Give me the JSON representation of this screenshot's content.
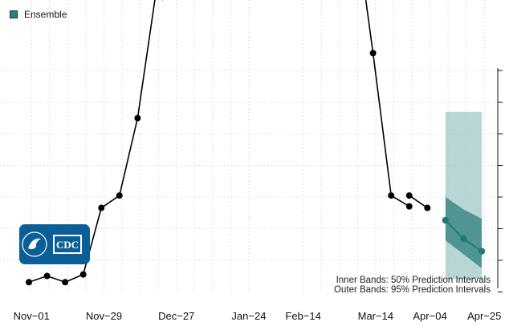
{
  "legend": {
    "label": "Ensemble",
    "color": "#2d7f7c"
  },
  "notes": {
    "inner": "Inner Bands: 50% Prediction Intervals",
    "outer": "Outer Bands: 95% Prediction Intervals"
  },
  "logo": {
    "text": "CDC"
  },
  "colors": {
    "observed": "#000000",
    "forecast": "#1f7b78",
    "band50": "#2d7f7c",
    "band95": "#9fc8c7",
    "grid": "#cccccc"
  },
  "chart_data": {
    "type": "line",
    "title": "",
    "xlabel": "",
    "ylabel": "",
    "x_ticks": [
      {
        "label": "Nov−01",
        "date": "2020-11-01"
      },
      {
        "label": "Nov−29",
        "date": "2020-11-29"
      },
      {
        "label": "Dec−27",
        "date": "2020-12-27"
      },
      {
        "label": "Jan−24",
        "date": "2021-01-24"
      },
      {
        "label": "Feb−14",
        "date": "2021-02-14"
      },
      {
        "label": "Mar−14",
        "date": "2021-03-14"
      },
      {
        "label": "Apr−04",
        "date": "2021-04-04"
      },
      {
        "label": "Apr−25",
        "date": "2021-04-25"
      }
    ],
    "y_ticks_count": 7,
    "grid": true,
    "series": [
      {
        "x": [
          "2020-10-31",
          "2020-11-07",
          "2020-11-14",
          "2020-11-21",
          "2020-11-28",
          "2020-12-05",
          "2020-12-12",
          "2020-12-19",
          "2021-03-13",
          "2021-03-20",
          "2021-03-27",
          "2021-04-03"
        ],
        "y": [
          0.2,
          0.4,
          0.2,
          0.45,
          2.6,
          3.0,
          5.5,
          9.5,
          7.6,
          3.0,
          2.65,
          null
        ]
      },
      {
        "x": [
          "2021-03-27",
          "2021-04-03"
        ],
        "y": [
          3.0,
          2.6
        ]
      },
      {
        "x": [
          "2021-04-10",
          "2021-04-17",
          "2021-04-24"
        ],
        "y": [
          2.2,
          1.6,
          1.2
        ],
        "pi50_lower": [
          1.55,
          1.1,
          0.65
        ],
        "pi50_upper": [
          2.95,
          2.55,
          2.25
        ],
        "pi95_lower": [
          0.3,
          0.3,
          0.3
        ],
        "pi95_upper": [
          5.7,
          5.7,
          5.7
        ]
      }
    ]
  }
}
